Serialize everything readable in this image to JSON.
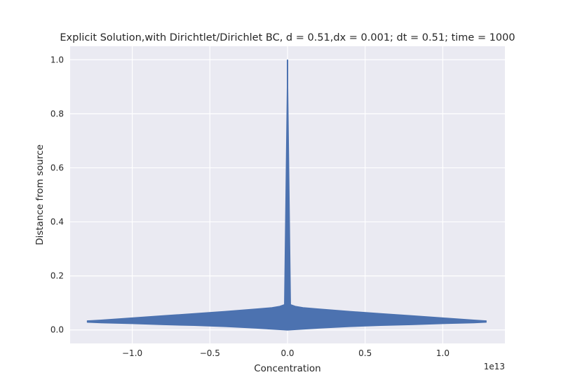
{
  "chart_data": {
    "type": "line",
    "title": "Explicit Solution,with Dirichtlet/Dirichlet BC, d = 0.51,dx = 0.001; dt = 0.51; time = 1000",
    "xlabel": "Concentration",
    "ylabel": "Distance from source",
    "x_offset_label": "1e13",
    "x_scale_factor": 10000000000000.0,
    "xlim": [
      -1.4,
      1.4
    ],
    "ylim": [
      -0.05,
      1.05
    ],
    "x_ticks": [
      -1.0,
      -0.5,
      0.0,
      0.5,
      1.0
    ],
    "x_tick_labels": [
      "−1.0",
      "−0.5",
      "0.0",
      "0.5",
      "1.0"
    ],
    "y_ticks": [
      0.0,
      0.2,
      0.4,
      0.6,
      0.8,
      1.0
    ],
    "y_tick_labels": [
      "0.0",
      "0.2",
      "0.4",
      "0.6",
      "0.8",
      "1.0"
    ],
    "grid": true,
    "style": "seaborn-darkgrid",
    "series_color": "#4c72b0",
    "background_color": "#eaeaf2",
    "envelope_description": "Rapidly oscillating solution forms a filled envelope: spike to 1.0 at concentration 0, wide band near the bottom",
    "series": [
      {
        "name": "",
        "upper_envelope": {
          "x": [
            -1.29,
            -1.2,
            -1.0,
            -0.8,
            -0.6,
            -0.4,
            -0.2,
            -0.1,
            -0.05,
            -0.02,
            0.0,
            0.02,
            0.05,
            0.1,
            0.2,
            0.4,
            0.6,
            0.8,
            1.0,
            1.2,
            1.28
          ],
          "y": [
            0.034,
            0.037,
            0.045,
            0.053,
            0.061,
            0.069,
            0.078,
            0.083,
            0.088,
            0.094,
            1.0,
            0.094,
            0.088,
            0.083,
            0.078,
            0.069,
            0.061,
            0.053,
            0.045,
            0.037,
            0.034
          ]
        },
        "lower_envelope": {
          "x": [
            -1.29,
            -1.2,
            -1.0,
            -0.8,
            -0.6,
            -0.4,
            -0.2,
            0.0,
            0.2,
            0.4,
            0.6,
            0.8,
            1.0,
            1.2,
            1.28
          ],
          "y": [
            0.028,
            0.026,
            0.023,
            0.019,
            0.016,
            0.012,
            0.006,
            -0.001,
            0.006,
            0.012,
            0.016,
            0.019,
            0.023,
            0.026,
            0.028
          ]
        }
      }
    ]
  }
}
